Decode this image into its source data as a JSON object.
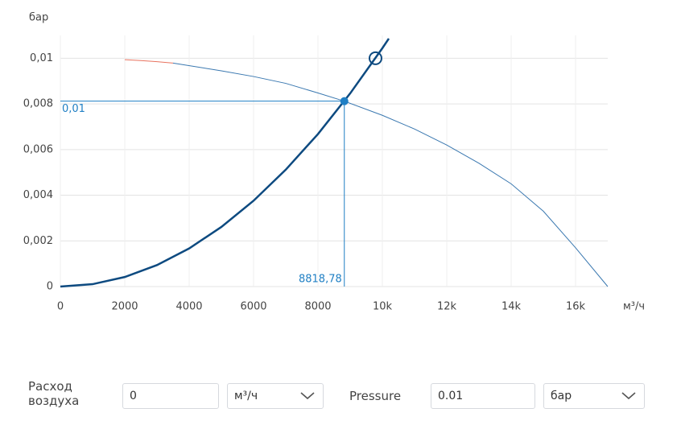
{
  "chart_data": {
    "type": "line",
    "y_axis_label": "бар",
    "x_axis_label": "м³/ч",
    "xlim": [
      0,
      17000
    ],
    "ylim": [
      0,
      0.011
    ],
    "xticks": [
      0,
      2000,
      4000,
      6000,
      8000,
      {
        "value": 10000,
        "label": "10k"
      },
      {
        "value": 12000,
        "label": "12k"
      },
      {
        "value": 14000,
        "label": "14k"
      },
      {
        "value": 16000,
        "label": "16k"
      }
    ],
    "yticks": [
      0,
      {
        "value": 0.002,
        "label": "0,002"
      },
      {
        "value": 0.004,
        "label": "0,004"
      },
      {
        "value": 0.006,
        "label": "0,006"
      },
      {
        "value": 0.008,
        "label": "0,008"
      },
      {
        "value": 0.01,
        "label": "0,01"
      }
    ],
    "grid": true,
    "series": [
      {
        "color": "#0d4a80",
        "width": 2.5,
        "x": [
          0,
          1000,
          2000,
          3000,
          4000,
          5000,
          6000,
          7000,
          8000,
          9000,
          10000,
          10200
        ],
        "values": [
          0,
          0.000104,
          0.000418,
          0.00094,
          0.00167,
          0.00261,
          0.00376,
          0.00512,
          0.00668,
          0.00846,
          0.01044,
          0.01086
        ]
      },
      {
        "color": "#e8735f",
        "width": 1,
        "x": [
          2000,
          2500,
          3000,
          3500
        ],
        "values": [
          0.00994,
          0.0099,
          0.00985,
          0.00979
        ]
      },
      {
        "color": "#3a78b0",
        "width": 1,
        "x": [
          3500,
          5000,
          6000,
          7000,
          8000,
          8818.78,
          10000,
          11000,
          12000,
          13000,
          14000,
          15000,
          16000,
          17000
        ],
        "values": [
          0.00979,
          0.00945,
          0.0092,
          0.0089,
          0.00848,
          0.00812,
          0.0075,
          0.0069,
          0.0062,
          0.0054,
          0.0045,
          0.0033,
          0.0017,
          0
        ]
      }
    ],
    "operating_point": {
      "x": 8818.78,
      "y": 0.00812,
      "x_label": "8818,78",
      "y_label": "0,01",
      "color": "#1f7fc4"
    },
    "target_point": {
      "x": 9787,
      "y": 0.01,
      "color": "#0d4a80"
    }
  },
  "form": {
    "flow_label": "Расход воздуха",
    "flow_value": "0",
    "flow_unit": "м³/ч",
    "pressure_label": "Pressure",
    "pressure_value": "0.01",
    "pressure_unit": "бар"
  }
}
